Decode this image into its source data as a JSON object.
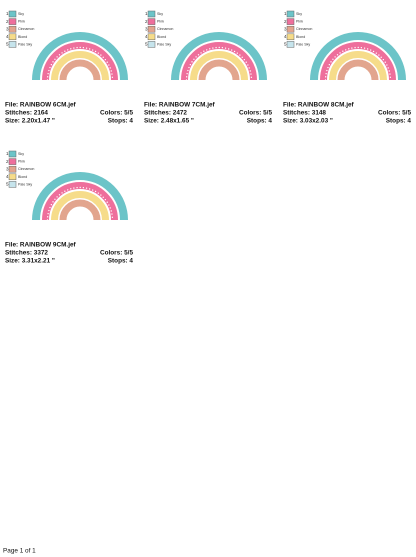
{
  "thread_colors": [
    {
      "number": "1",
      "name": "Sky",
      "swatch": "#6cc4c8"
    },
    {
      "number": "2",
      "name": "Pink",
      "swatch": "#ee6f9c"
    },
    {
      "number": "3",
      "name": "Cinnamon",
      "swatch": "#e2a58e"
    },
    {
      "number": "4",
      "name": "Blond",
      "swatch": "#f6dc8a"
    },
    {
      "number": "5",
      "name": "Pale Sky",
      "swatch": "#c6e4ec"
    }
  ],
  "designs": [
    {
      "file": "File: RAINBOW 6CM.jef",
      "stitches": "Stitches: 2164",
      "size": "Size: 2.20x1.47 \"",
      "colors": "Colors: 5/5",
      "stops": "Stops: 4"
    },
    {
      "file": "File: RAINBOW 7CM.jef",
      "stitches": "Stitches: 2472",
      "size": "Size: 2.48x1.65 \"",
      "colors": "Colors: 5/5",
      "stops": "Stops: 4"
    },
    {
      "file": "File: RAINBOW 8CM.jef",
      "stitches": "Stitches: 3148",
      "size": "Size: 3.03x2.03 \"",
      "colors": "Colors: 5/5",
      "stops": "Stops: 4"
    },
    {
      "file": "File: RAINBOW 9CM.jef",
      "stitches": "Stitches: 3372",
      "size": "Size: 3.31x2.21 \"",
      "colors": "Colors: 5/5",
      "stops": "Stops: 4"
    }
  ],
  "footer": "Page 1 of 1"
}
